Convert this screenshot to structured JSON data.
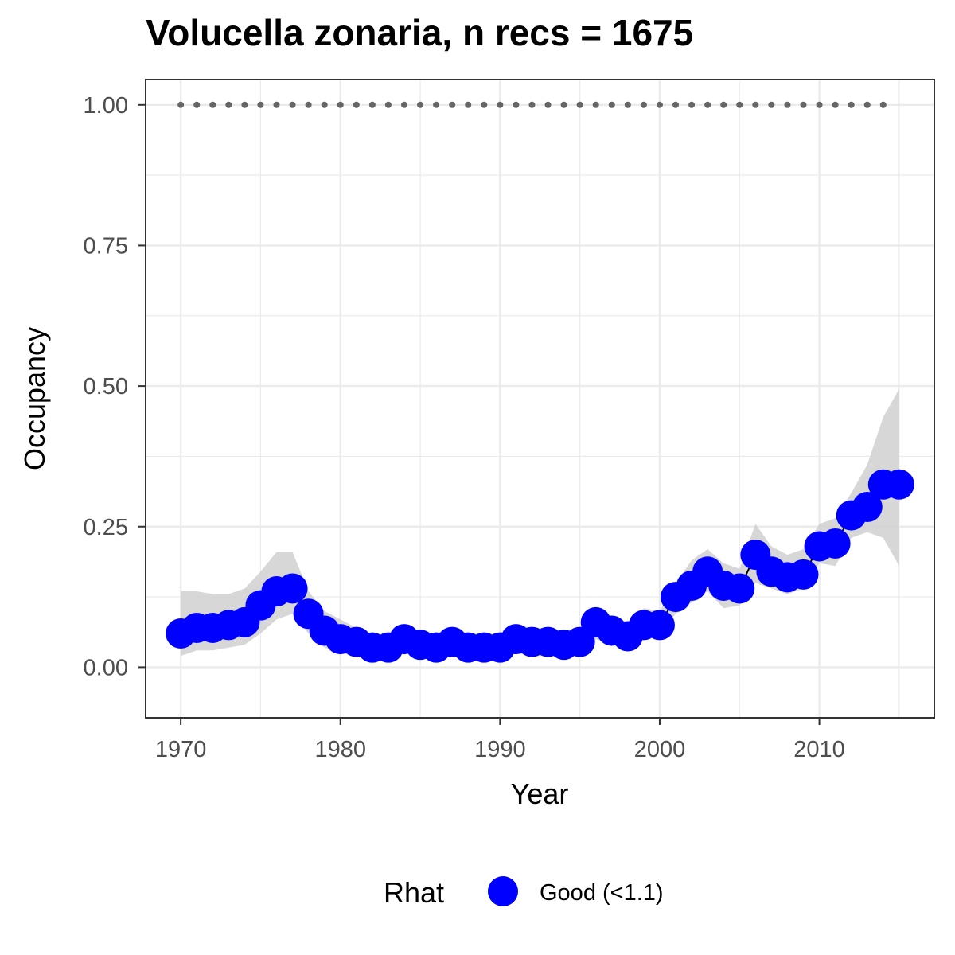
{
  "chart_data": {
    "type": "line",
    "title": "Volucella zonaria, n recs = 1675",
    "xlabel": "Year",
    "ylabel": "Occupancy",
    "xlim": [
      1967.8,
      2017.2
    ],
    "ylim": [
      -0.09,
      1.045
    ],
    "x_ticks": [
      1970,
      1980,
      1990,
      2000,
      2010
    ],
    "x_tick_labels": [
      "1970",
      "1980",
      "1990",
      "2000",
      "2010"
    ],
    "y_ticks": [
      0,
      0.25,
      0.5,
      0.75,
      1.0
    ],
    "y_tick_labels": [
      "0.00",
      "0.25",
      "0.50",
      "0.75",
      "1.00"
    ],
    "grid": true,
    "colors": {
      "points": "#0000ff",
      "ribbon": "#d3d3d3",
      "line": "#000000",
      "reference": "#666666",
      "grid": "#ebebeb",
      "border": "#333333"
    },
    "series": [
      {
        "name": "Good (<1.1)",
        "x": [
          1970,
          1971,
          1972,
          1973,
          1974,
          1975,
          1976,
          1977,
          1978,
          1979,
          1980,
          1981,
          1982,
          1983,
          1984,
          1985,
          1986,
          1987,
          1988,
          1989,
          1990,
          1991,
          1992,
          1993,
          1994,
          1995,
          1996,
          1997,
          1998,
          1999,
          2000,
          2001,
          2002,
          2003,
          2004,
          2005,
          2006,
          2007,
          2008,
          2009,
          2010,
          2011,
          2012,
          2013,
          2014,
          2015
        ],
        "y": [
          0.06,
          0.07,
          0.07,
          0.075,
          0.08,
          0.11,
          0.135,
          0.14,
          0.095,
          0.065,
          0.05,
          0.045,
          0.035,
          0.035,
          0.05,
          0.04,
          0.035,
          0.045,
          0.035,
          0.035,
          0.035,
          0.05,
          0.045,
          0.045,
          0.04,
          0.045,
          0.08,
          0.065,
          0.055,
          0.075,
          0.075,
          0.125,
          0.145,
          0.17,
          0.145,
          0.14,
          0.2,
          0.17,
          0.16,
          0.165,
          0.215,
          0.22,
          0.27,
          0.285,
          0.325,
          0.325
        ],
        "lower": [
          0.02,
          0.03,
          0.03,
          0.035,
          0.04,
          0.06,
          0.085,
          0.095,
          0.06,
          0.035,
          0.025,
          0.02,
          0.015,
          0.015,
          0.025,
          0.02,
          0.015,
          0.02,
          0.015,
          0.015,
          0.015,
          0.025,
          0.02,
          0.02,
          0.02,
          0.02,
          0.05,
          0.04,
          0.03,
          0.05,
          0.055,
          0.095,
          0.115,
          0.135,
          0.105,
          0.11,
          0.15,
          0.14,
          0.13,
          0.14,
          0.185,
          0.18,
          0.23,
          0.24,
          0.23,
          0.18
        ],
        "upper": [
          0.135,
          0.135,
          0.13,
          0.13,
          0.14,
          0.17,
          0.205,
          0.205,
          0.135,
          0.1,
          0.085,
          0.07,
          0.055,
          0.055,
          0.075,
          0.065,
          0.06,
          0.07,
          0.06,
          0.06,
          0.06,
          0.075,
          0.07,
          0.07,
          0.065,
          0.07,
          0.105,
          0.09,
          0.08,
          0.105,
          0.1,
          0.15,
          0.19,
          0.21,
          0.185,
          0.175,
          0.255,
          0.215,
          0.2,
          0.21,
          0.255,
          0.265,
          0.31,
          0.36,
          0.445,
          0.495
        ]
      }
    ],
    "reference_line": {
      "y": 1.0,
      "x": [
        1970,
        2014
      ]
    },
    "legend": {
      "title": "Rhat",
      "position": "bottom",
      "entries": [
        "Good (<1.1)"
      ]
    }
  }
}
